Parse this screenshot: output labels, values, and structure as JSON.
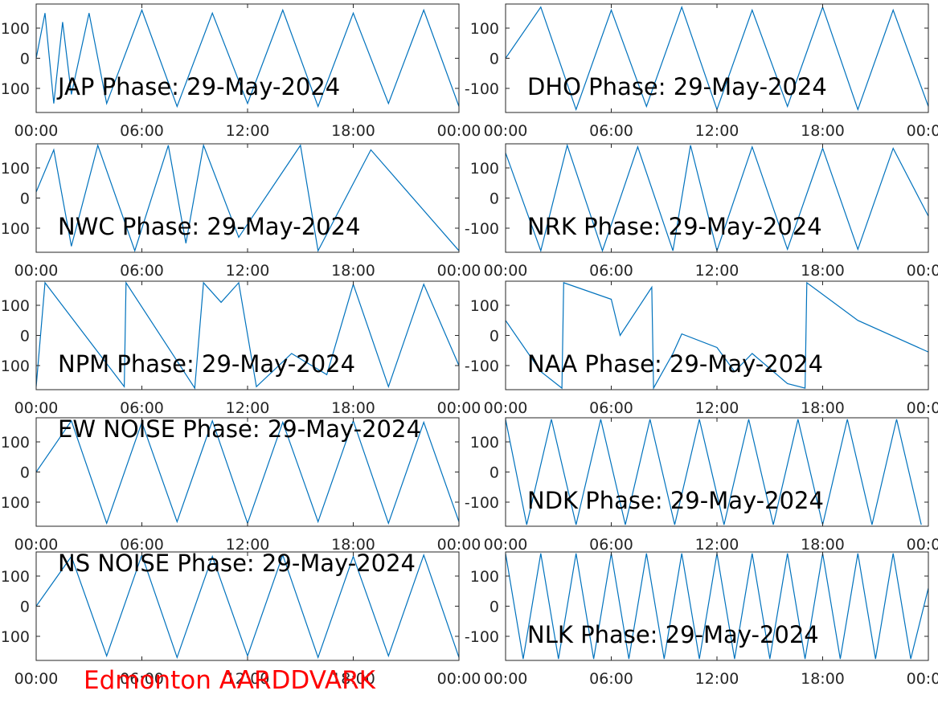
{
  "figure": {
    "footer": "Edmonton AARDDVARK",
    "line_color": "#0072BD",
    "footer_color": "#FF0000"
  },
  "chart_data": [
    {
      "type": "line",
      "title": "JAP Phase: 29-May-2024",
      "x_ticks": [
        "00:00",
        "06:00",
        "12:00",
        "18:00",
        "00:00"
      ],
      "y_ticks": [
        "100",
        "0",
        "-100"
      ],
      "ylim": [
        -180,
        180
      ],
      "xlim": [
        "00:00",
        "24:00"
      ],
      "series": [
        {
          "x": [
            0,
            0.5,
            1,
            1.5,
            2,
            3,
            4,
            6,
            8,
            10,
            12,
            14,
            16,
            18,
            20,
            22,
            24
          ],
          "y": [
            0,
            150,
            -150,
            120,
            -120,
            150,
            -150,
            160,
            -160,
            150,
            -150,
            160,
            -160,
            150,
            -150,
            160,
            -160
          ]
        }
      ]
    },
    {
      "type": "line",
      "title": "DHO Phase: 29-May-2024",
      "x_ticks": [
        "00:00",
        "06:00",
        "12:00",
        "18:00",
        "00:00"
      ],
      "y_ticks": [
        "100",
        "0",
        "-100"
      ],
      "ylim": [
        -180,
        180
      ],
      "xlim": [
        "00:00",
        "24:00"
      ],
      "series": [
        {
          "x": [
            0,
            2,
            4,
            6,
            8,
            10,
            12,
            14,
            16,
            18,
            20,
            22,
            24
          ],
          "y": [
            0,
            170,
            -170,
            160,
            -160,
            170,
            -170,
            160,
            -160,
            170,
            -170,
            160,
            -160
          ]
        }
      ]
    },
    {
      "type": "line",
      "title": "NWC Phase: 29-May-2024",
      "x_ticks": [
        "00:00",
        "06:00",
        "12:00",
        "18:00",
        "00:00"
      ],
      "y_ticks": [
        "100",
        "0",
        "-100"
      ],
      "ylim": [
        -180,
        180
      ],
      "xlim": [
        "00:00",
        "24:00"
      ],
      "series": [
        {
          "x": [
            0,
            1,
            2,
            3.5,
            5.6,
            7.5,
            8.5,
            9.5,
            11.5,
            15,
            16,
            19,
            24
          ],
          "y": [
            20,
            160,
            -160,
            175,
            -175,
            175,
            -150,
            175,
            -130,
            175,
            -175,
            160,
            -175
          ]
        }
      ]
    },
    {
      "type": "line",
      "title": "NRK Phase: 29-May-2024",
      "x_ticks": [
        "00:00",
        "06:00",
        "12:00",
        "18:00",
        "00:00"
      ],
      "y_ticks": [
        "100",
        "0",
        "-100"
      ],
      "ylim": [
        -180,
        180
      ],
      "xlim": [
        "00:00",
        "24:00"
      ],
      "series": [
        {
          "x": [
            0,
            2,
            3.5,
            5.5,
            7.5,
            9.5,
            10.5,
            12,
            14,
            16,
            18,
            20,
            22,
            24
          ],
          "y": [
            150,
            -175,
            175,
            -175,
            170,
            -175,
            175,
            -175,
            170,
            -170,
            165,
            -170,
            165,
            -60
          ]
        }
      ]
    },
    {
      "type": "line",
      "title": "NPM Phase: 29-May-2024",
      "x_ticks": [
        "00:00",
        "06:00",
        "12:00",
        "18:00",
        "00:00"
      ],
      "y_ticks": [
        "100",
        "0",
        "-100"
      ],
      "ylim": [
        -180,
        180
      ],
      "xlim": [
        "00:00",
        "24:00"
      ],
      "series": [
        {
          "x": [
            0,
            0.5,
            5,
            5.1,
            9,
            9.5,
            10.5,
            11.5,
            12.5,
            14.5,
            16.5,
            18,
            20,
            22,
            24
          ],
          "y": [
            -170,
            175,
            -170,
            175,
            -175,
            175,
            110,
            175,
            -170,
            -60,
            -130,
            170,
            -170,
            170,
            -100
          ]
        }
      ]
    },
    {
      "type": "line",
      "title": "NAA Phase: 29-May-2024",
      "x_ticks": [
        "00:00",
        "06:00",
        "12:00",
        "18:00",
        "00:00"
      ],
      "y_ticks": [
        "100",
        "0",
        "-100"
      ],
      "ylim": [
        -180,
        180
      ],
      "xlim": [
        "00:00",
        "24:00"
      ],
      "series": [
        {
          "x": [
            0,
            2,
            3.2,
            3.3,
            6,
            6.5,
            8.3,
            8.4,
            9.5,
            10,
            12,
            13,
            14,
            16,
            17,
            17.1,
            20,
            24
          ],
          "y": [
            50,
            -120,
            -175,
            175,
            120,
            0,
            160,
            -175,
            -60,
            5,
            -40,
            -120,
            -60,
            -160,
            -175,
            175,
            50,
            -55
          ]
        }
      ]
    },
    {
      "type": "line",
      "title": "EW NOISE Phase: 29-May-2024",
      "x_ticks": [
        "00:00",
        "06:00",
        "12:00",
        "18:00",
        "00:00"
      ],
      "y_ticks": [
        "100",
        "0",
        "-100"
      ],
      "ylim": [
        -180,
        180
      ],
      "xlim": [
        "00:00",
        "24:00"
      ],
      "series": [
        {
          "x": [
            0,
            2,
            4,
            6,
            8,
            10,
            12,
            14,
            16,
            18,
            20,
            22,
            24
          ],
          "y": [
            0,
            170,
            -170,
            165,
            -165,
            170,
            -170,
            165,
            -165,
            170,
            -170,
            165,
            -165
          ]
        }
      ]
    },
    {
      "type": "line",
      "title": "NDK Phase: 29-May-2024",
      "x_ticks": [
        "00:00",
        "06:00",
        "12:00",
        "18:00",
        "00:00"
      ],
      "y_ticks": [
        "100",
        "0",
        "-100"
      ],
      "ylim": [
        -180,
        180
      ],
      "xlim": [
        "00:00",
        "24:00"
      ],
      "series": [
        {
          "x": [
            0,
            1.2,
            2.6,
            4,
            5.4,
            6.8,
            8.2,
            9.6,
            11,
            12.4,
            13.8,
            15.2,
            16.6,
            18,
            19.4,
            20.8,
            22.2,
            23.6
          ],
          "y": [
            175,
            -175,
            175,
            -175,
            175,
            -175,
            175,
            -175,
            175,
            -175,
            175,
            -175,
            175,
            -175,
            175,
            -175,
            175,
            -175
          ]
        }
      ]
    },
    {
      "type": "line",
      "title": "NS NOISE Phase: 29-May-2024",
      "x_ticks": [
        "00:00",
        "06:00",
        "12:00",
        "18:00",
        "00:00"
      ],
      "y_ticks": [
        "100",
        "0",
        "-100"
      ],
      "ylim": [
        -180,
        180
      ],
      "xlim": [
        "00:00",
        "24:00"
      ],
      "series": [
        {
          "x": [
            0,
            2,
            4,
            6,
            8,
            10,
            12,
            14,
            16,
            18,
            20,
            22,
            24
          ],
          "y": [
            0,
            165,
            -165,
            170,
            -170,
            165,
            -165,
            170,
            -170,
            165,
            -165,
            170,
            -170
          ]
        }
      ]
    },
    {
      "type": "line",
      "title": "NLK Phase: 29-May-2024",
      "x_ticks": [
        "00:00",
        "06:00",
        "12:00",
        "18:00",
        "00:00"
      ],
      "y_ticks": [
        "100",
        "0",
        "-100"
      ],
      "ylim": [
        -180,
        180
      ],
      "xlim": [
        "00:00",
        "24:00"
      ],
      "series": [
        {
          "x": [
            0,
            1,
            2,
            3,
            4,
            5,
            6,
            7,
            8,
            9,
            10,
            11,
            12,
            13,
            14,
            15,
            16,
            17,
            18,
            19,
            20,
            21,
            22,
            23,
            24
          ],
          "y": [
            175,
            -175,
            175,
            -175,
            175,
            -175,
            175,
            -175,
            175,
            -175,
            175,
            -175,
            175,
            -175,
            175,
            -175,
            175,
            -175,
            175,
            -175,
            175,
            -175,
            175,
            -175,
            60
          ]
        }
      ]
    }
  ]
}
